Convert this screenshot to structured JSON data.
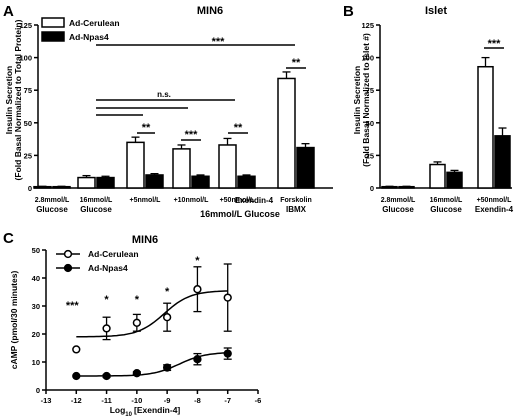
{
  "chart_data": [
    {
      "panel": "A",
      "type": "bar",
      "title": "MIN6",
      "ylabel": "Insulin Secretion",
      "ylabel2": "(Fold Basal Normalized to Total Protein)",
      "ylim": [
        0,
        125
      ],
      "yticks": [
        "0",
        "25",
        "50",
        "75",
        "100",
        "125"
      ],
      "legend": {
        "position": "top-left",
        "entries": [
          "Ad-Cerulean",
          "Ad-Npas4"
        ]
      },
      "categories": [
        "2.8mmol/L",
        "16mmol/L",
        "+5nmol/L",
        "+10nmol/L",
        "+50nmol/L",
        "Forskolin"
      ],
      "category_sub": [
        "Glucose",
        "Glucose",
        "",
        "",
        "",
        "IBMX"
      ],
      "group_label": "Exendin-4",
      "group_label2": "16mmol/L Glucose",
      "series": [
        {
          "name": "Ad-Cerulean",
          "color": "#ffffff",
          "values": [
            1,
            8,
            35,
            30,
            33,
            84
          ],
          "errors": [
            0.3,
            1.5,
            4,
            3,
            5,
            5
          ]
        },
        {
          "name": "Ad-Npas4",
          "color": "#000000",
          "values": [
            1,
            8,
            10,
            9,
            9,
            31
          ],
          "errors": [
            0.3,
            1,
            1,
            1,
            1,
            3
          ]
        }
      ],
      "annotations": [
        "**",
        "***",
        "**",
        "**",
        "n.s.",
        "***"
      ]
    },
    {
      "panel": "B",
      "type": "bar",
      "title": "Islet",
      "ylabel": "Insulin Secretion",
      "ylabel2": "(Fold Basal Normalized to Islet #)",
      "ylim": [
        0,
        125
      ],
      "yticks": [
        "0",
        "25",
        "50",
        "75",
        "100",
        "125"
      ],
      "categories": [
        "2.8mmol/L",
        "16mmol/L",
        "+50nmol/L"
      ],
      "category_sub": [
        "Glucose",
        "Glucose",
        "Exendin-4"
      ],
      "series": [
        {
          "name": "Ad-Cerulean",
          "color": "#ffffff",
          "values": [
            1,
            18,
            93
          ],
          "errors": [
            0.3,
            2,
            7
          ]
        },
        {
          "name": "Ad-Npas4",
          "color": "#000000",
          "values": [
            1,
            12,
            40
          ],
          "errors": [
            0.3,
            1.5,
            6
          ]
        }
      ],
      "annotations": [
        "***"
      ]
    },
    {
      "panel": "C",
      "type": "scatter",
      "title": "MIN6",
      "ylabel": "cAMP (pmol/30 minutes)",
      "xlabel_base": "Log",
      "xlabel_sub": "10",
      "xlabel_rest": "[Exendin-4]",
      "xlim": [
        -13,
        -6
      ],
      "ylim": [
        0,
        50
      ],
      "xticks": [
        "-13",
        "-12",
        "-11",
        "-10",
        "-9",
        "-8",
        "-7",
        "-6"
      ],
      "yticks": [
        "0",
        "10",
        "20",
        "30",
        "40",
        "50"
      ],
      "legend": {
        "position": "top-left",
        "entries": [
          "Ad-Cerulean",
          "Ad-Npas4"
        ]
      },
      "x": [
        -12,
        -11,
        -10,
        -9,
        -8,
        -7
      ],
      "series": [
        {
          "name": "Ad-Cerulean",
          "marker": "open",
          "values": [
            14.5,
            22,
            24,
            26,
            36,
            33
          ],
          "errors": [
            0,
            4,
            3,
            5,
            8,
            12
          ]
        },
        {
          "name": "Ad-Npas4",
          "marker": "filled",
          "values": [
            5,
            5,
            6,
            8,
            11,
            13
          ],
          "errors": [
            0,
            0.5,
            0.5,
            1,
            2,
            2
          ]
        }
      ],
      "annotations": [
        "***",
        "*",
        "*",
        "*",
        "*"
      ]
    }
  ]
}
